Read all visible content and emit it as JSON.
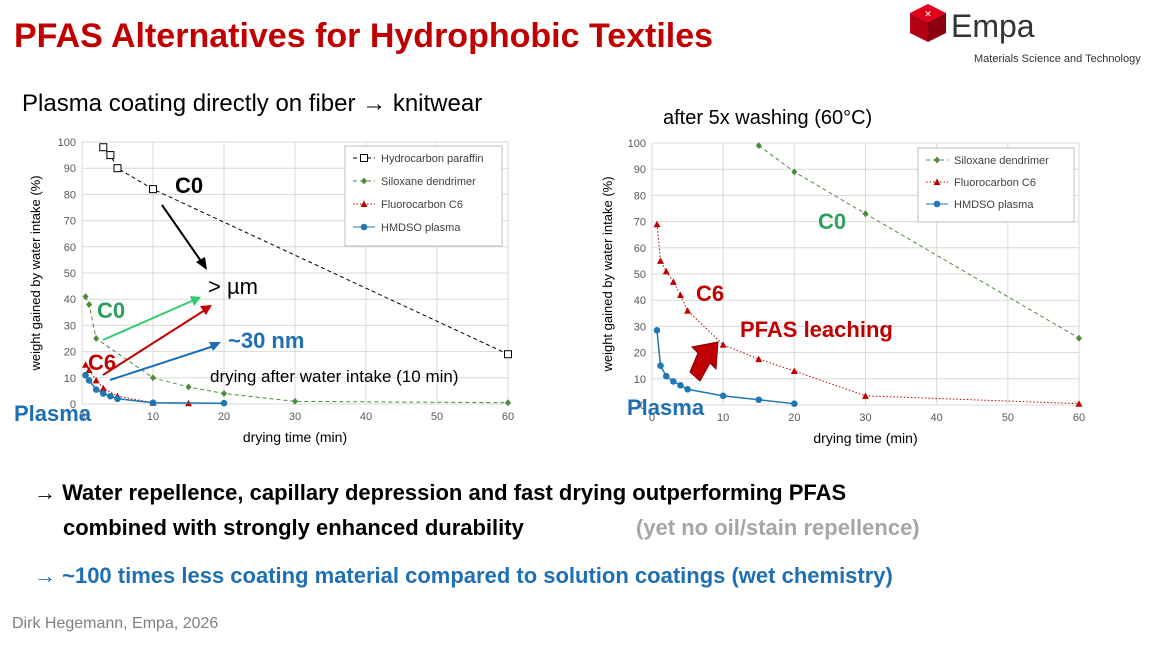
{
  "header": {
    "title": "PFAS Alternatives for Hydrophobic Textiles",
    "logo": "Empa",
    "logo_subtitle": "Materials Science and Technology"
  },
  "chart_data": [
    {
      "type": "line",
      "title": "Plasma coating directly on fiber → knitwear",
      "x_label": "drying time (min)",
      "y_label": "weight gained by water intake (%)",
      "xlim": [
        0,
        60
      ],
      "xticks": [
        0,
        10,
        20,
        30,
        40,
        50,
        60
      ],
      "ylim": [
        0,
        100
      ],
      "yticks": [
        0,
        10,
        20,
        30,
        40,
        50,
        60,
        70,
        80,
        90,
        100
      ],
      "grid": true,
      "legend": "upper right",
      "series": [
        {
          "name": "Hydrocarbon paraffin",
          "color": "#000000",
          "marker": "square-open",
          "line_style": "dashed",
          "x": [
            3,
            4,
            5,
            10,
            60
          ],
          "values": [
            98,
            95,
            90,
            82,
            19
          ]
        },
        {
          "name": "Siloxane dendrimer",
          "color": "#4e8a3a",
          "marker": "diamond",
          "line_style": "dashed",
          "x": [
            0.5,
            1,
            2,
            10,
            15,
            20,
            30,
            60
          ],
          "values": [
            41,
            38,
            25,
            10,
            6.5,
            4,
            1,
            0.5
          ]
        },
        {
          "name": "Fluorocarbon C6",
          "color": "#c00000",
          "marker": "triangle",
          "line_style": "dotted",
          "x": [
            0.5,
            1,
            2,
            3,
            5,
            10,
            15
          ],
          "values": [
            15,
            13,
            9,
            6,
            3,
            0.5,
            0.3
          ]
        },
        {
          "name": "HMDSO plasma",
          "color": "#1f77b4",
          "marker": "circle",
          "line_style": "solid",
          "x": [
            0.5,
            1,
            2,
            3,
            4,
            5,
            10,
            20
          ],
          "values": [
            11,
            9,
            5.5,
            4,
            3,
            2,
            0.5,
            0.3
          ]
        }
      ],
      "annotations": [
        {
          "text": "C0",
          "color": "#000000"
        },
        {
          "text": "> µm",
          "color": "#000000"
        },
        {
          "text": "C0",
          "color": "#2e9e5b"
        },
        {
          "text": "C6",
          "color": "#c00000"
        },
        {
          "text": "~30 nm",
          "color": "#1f6fb5"
        },
        {
          "text": "Plasma",
          "color": "#1f6fb5"
        },
        {
          "text": "drying after water intake (10 min)",
          "color": "#000000"
        }
      ]
    },
    {
      "type": "line",
      "title": "after 5x washing (60°C)",
      "x_label": "drying time (min)",
      "y_label": "weight gained by water intake (%)",
      "xlim": [
        0,
        60
      ],
      "xticks": [
        0,
        10,
        20,
        30,
        40,
        50,
        60
      ],
      "ylim": [
        0,
        100
      ],
      "yticks": [
        0,
        10,
        20,
        30,
        40,
        50,
        60,
        70,
        80,
        90,
        100
      ],
      "grid": true,
      "legend": "upper right",
      "series": [
        {
          "name": "Siloxane dendrimer",
          "color": "#4e8a3a",
          "marker": "diamond",
          "line_style": "dashed",
          "x": [
            15,
            20,
            30,
            60
          ],
          "values": [
            99,
            89,
            73,
            25.5
          ]
        },
        {
          "name": "Fluorocarbon C6",
          "color": "#c00000",
          "marker": "triangle",
          "line_style": "dotted",
          "x": [
            0.7,
            1.2,
            2,
            3,
            4,
            5,
            10,
            15,
            20,
            30,
            60
          ],
          "values": [
            69,
            55,
            51,
            47,
            42,
            36,
            23,
            17.5,
            13,
            3.5,
            0.5
          ]
        },
        {
          "name": "HMDSO plasma",
          "color": "#1f77b4",
          "marker": "circle",
          "line_style": "solid",
          "x": [
            0.7,
            1.2,
            2,
            3,
            4,
            5,
            10,
            15,
            20
          ],
          "values": [
            28.5,
            15,
            11,
            9,
            7.5,
            6,
            3.5,
            2,
            0.5
          ]
        }
      ],
      "annotations": [
        {
          "text": "C0",
          "color": "#2e9e5b"
        },
        {
          "text": "C6",
          "color": "#c00000"
        },
        {
          "text": "PFAS leaching",
          "color": "#c00000"
        },
        {
          "text": "Plasma",
          "color": "#1f6fb5"
        }
      ]
    }
  ],
  "bullets": [
    {
      "lines": [
        "→ Water repellence, capillary depression and fast drying outperforming PFAS",
        "combined with strongly enhanced durability"
      ],
      "note": "(yet no oil/stain repellence)"
    },
    {
      "lines": [
        "→ ~100 times less coating material compared to solution coatings (wet chemistry)"
      ]
    }
  ],
  "footer": "Dirk Hegemann, Empa, 2026"
}
